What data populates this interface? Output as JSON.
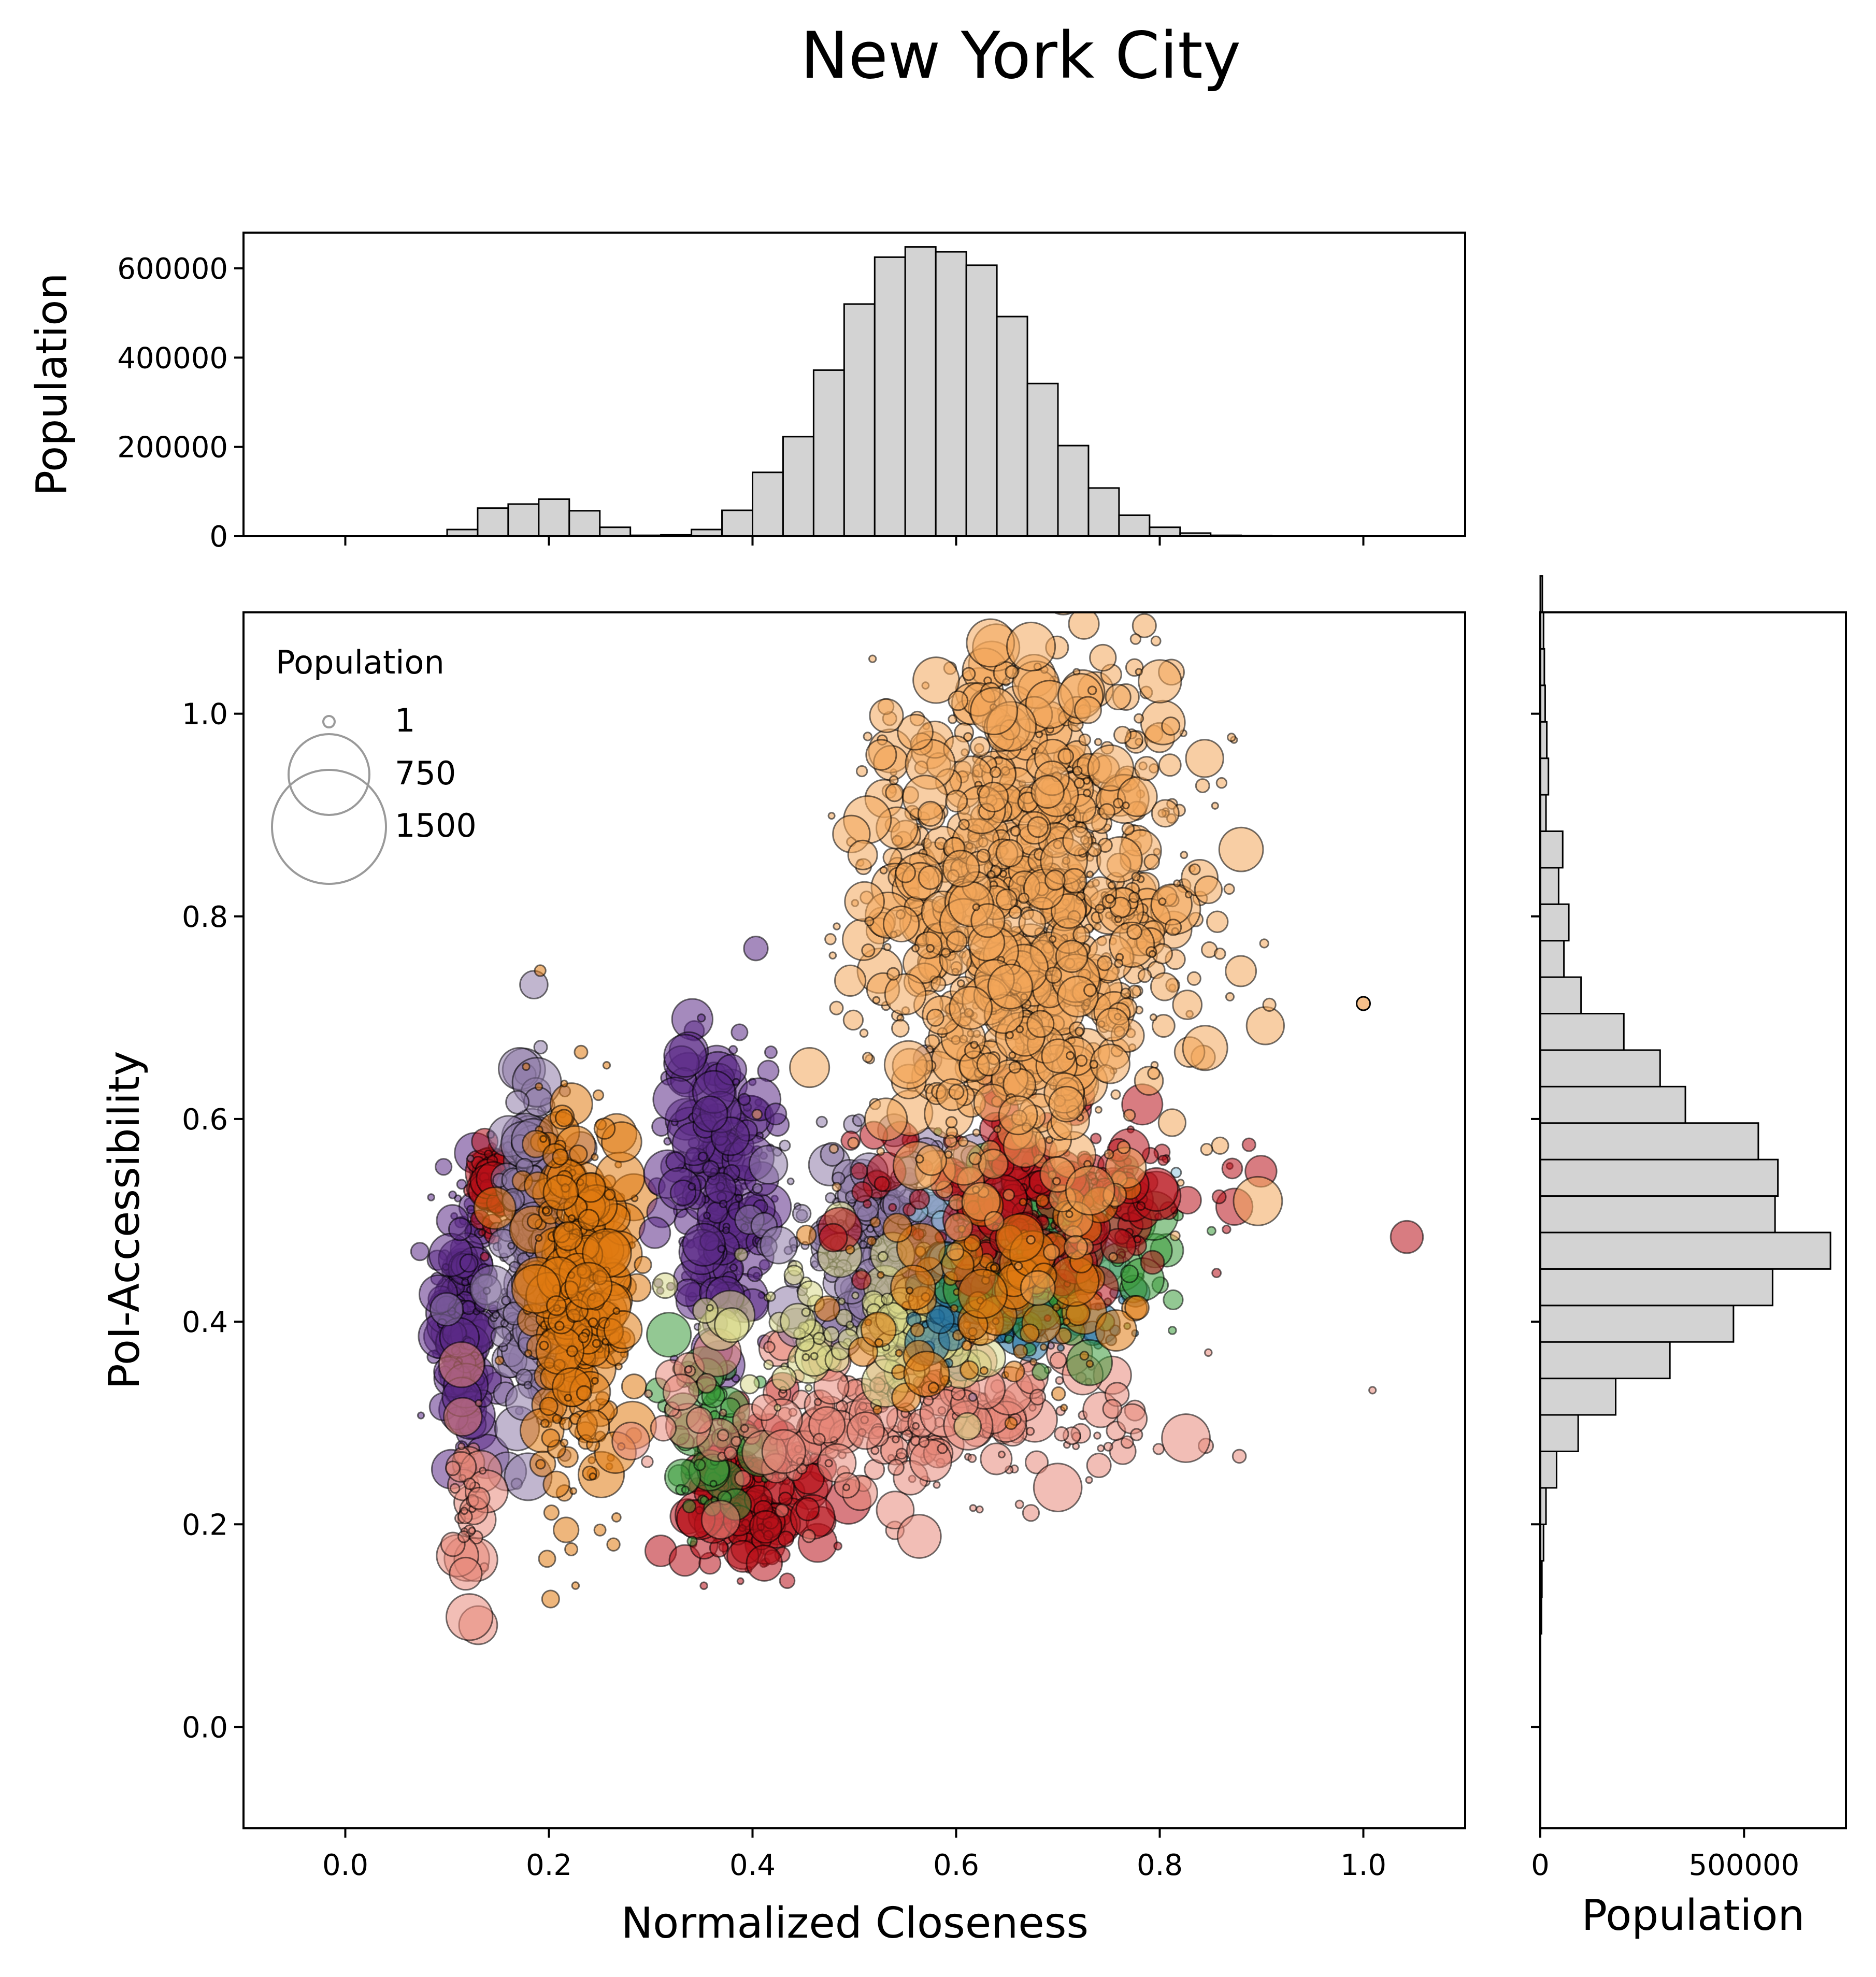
{
  "chart_data": {
    "title": "New York City",
    "main": {
      "type": "scatter",
      "xlabel": "Normalized Closeness",
      "ylabel": "PoI-Accessibility",
      "xlim": [
        -0.1,
        1.1
      ],
      "ylim": [
        -0.1,
        1.1
      ],
      "xticks": [
        "0.0",
        "0.2",
        "0.4",
        "0.6",
        "0.8",
        "1.0"
      ],
      "yticks": [
        "0.0",
        "0.2",
        "0.4",
        "0.6",
        "0.8",
        "1.0"
      ],
      "legend": {
        "title": "Population",
        "placement": "upper-left",
        "entries": [
          {
            "label": "1",
            "size": 1
          },
          {
            "label": "750",
            "size": 750
          },
          {
            "label": "1500",
            "size": 1500
          }
        ]
      },
      "clusters": [
        {
          "color": "#5b2a86",
          "cx": 0.115,
          "cy": 0.4,
          "sx": 0.012,
          "sy": 0.06,
          "n": 220
        },
        {
          "color": "#b8101a",
          "cx": 0.14,
          "cy": 0.53,
          "sx": 0.008,
          "sy": 0.025,
          "n": 70
        },
        {
          "color": "#8e7aa8",
          "cx": 0.18,
          "cy": 0.48,
          "sx": 0.02,
          "sy": 0.08,
          "n": 260
        },
        {
          "color": "#e07a10",
          "cx": 0.23,
          "cy": 0.43,
          "sx": 0.025,
          "sy": 0.09,
          "n": 360
        },
        {
          "color": "#e8887a",
          "cx": 0.12,
          "cy": 0.22,
          "sx": 0.01,
          "sy": 0.05,
          "n": 40
        },
        {
          "color": "#5b2a86",
          "cx": 0.37,
          "cy": 0.53,
          "sx": 0.025,
          "sy": 0.07,
          "n": 250
        },
        {
          "color": "#b8101a",
          "cx": 0.4,
          "cy": 0.22,
          "sx": 0.03,
          "sy": 0.04,
          "n": 180
        },
        {
          "color": "#3a9a3a",
          "cx": 0.36,
          "cy": 0.28,
          "sx": 0.02,
          "sy": 0.05,
          "n": 60
        },
        {
          "color": "#e8887a",
          "cx": 0.55,
          "cy": 0.3,
          "sx": 0.12,
          "sy": 0.04,
          "n": 260
        },
        {
          "color": "#8e7aa8",
          "cx": 0.55,
          "cy": 0.48,
          "sx": 0.06,
          "sy": 0.05,
          "n": 320
        },
        {
          "color": "#d9d98a",
          "cx": 0.52,
          "cy": 0.4,
          "sx": 0.07,
          "sy": 0.04,
          "n": 120
        },
        {
          "color": "#1f6f9f",
          "cx": 0.66,
          "cy": 0.43,
          "sx": 0.05,
          "sy": 0.03,
          "n": 130
        },
        {
          "color": "#8fc4de",
          "cx": 0.68,
          "cy": 0.49,
          "sx": 0.06,
          "sy": 0.03,
          "n": 100
        },
        {
          "color": "#3a9a3a",
          "cx": 0.7,
          "cy": 0.46,
          "sx": 0.05,
          "sy": 0.04,
          "n": 100
        },
        {
          "color": "#b8101a",
          "cx": 0.7,
          "cy": 0.52,
          "sx": 0.08,
          "sy": 0.04,
          "n": 220
        },
        {
          "color": "#e07a10",
          "cx": 0.62,
          "cy": 0.42,
          "sx": 0.08,
          "sy": 0.05,
          "n": 110
        },
        {
          "color": "#f2a55a",
          "cx": 0.67,
          "cy": 0.8,
          "sx": 0.08,
          "sy": 0.13,
          "n": 1100
        }
      ],
      "outlier": {
        "x": 1.0,
        "y": 0.714,
        "color": "#f2a55a"
      }
    },
    "top_histogram": {
      "type": "bar",
      "ylabel": "Population",
      "ylim": [
        0,
        680000
      ],
      "yticks": [
        0,
        200000,
        400000,
        600000
      ],
      "bin_width": 0.03,
      "bin_starts": [
        0.1,
        0.13,
        0.16,
        0.19,
        0.22,
        0.25,
        0.28,
        0.31,
        0.34,
        0.37,
        0.4,
        0.43,
        0.46,
        0.49,
        0.52,
        0.55,
        0.58,
        0.61,
        0.64,
        0.67,
        0.7,
        0.73,
        0.76,
        0.79,
        0.82,
        0.85,
        0.88
      ],
      "values": [
        15000,
        63000,
        72000,
        83000,
        57000,
        20000,
        2000,
        3000,
        15000,
        58000,
        143000,
        223000,
        372000,
        520000,
        625000,
        648000,
        637000,
        607000,
        492000,
        342000,
        203000,
        108000,
        47000,
        20000,
        7000,
        2000,
        1000
      ]
    },
    "right_histogram": {
      "type": "bar",
      "xlabel": "Population",
      "xlim": [
        0,
        750000
      ],
      "xticks": [
        0,
        500000
      ],
      "bin_height": 0.036,
      "bin_starts": [
        0.092,
        0.128,
        0.164,
        0.2,
        0.236,
        0.272,
        0.308,
        0.344,
        0.38,
        0.416,
        0.452,
        0.488,
        0.524,
        0.56,
        0.596,
        0.632,
        0.668,
        0.704,
        0.74,
        0.776,
        0.812,
        0.848,
        0.884,
        0.92,
        0.956,
        0.992,
        1.028,
        1.064,
        1.1
      ],
      "values": [
        3000,
        4000,
        8000,
        14000,
        40000,
        93000,
        185000,
        318000,
        474000,
        570000,
        712000,
        576000,
        583000,
        535000,
        356000,
        294000,
        205000,
        100000,
        58000,
        70000,
        45000,
        55000,
        14000,
        20000,
        16000,
        12000,
        10000,
        8000,
        5000
      ]
    }
  }
}
